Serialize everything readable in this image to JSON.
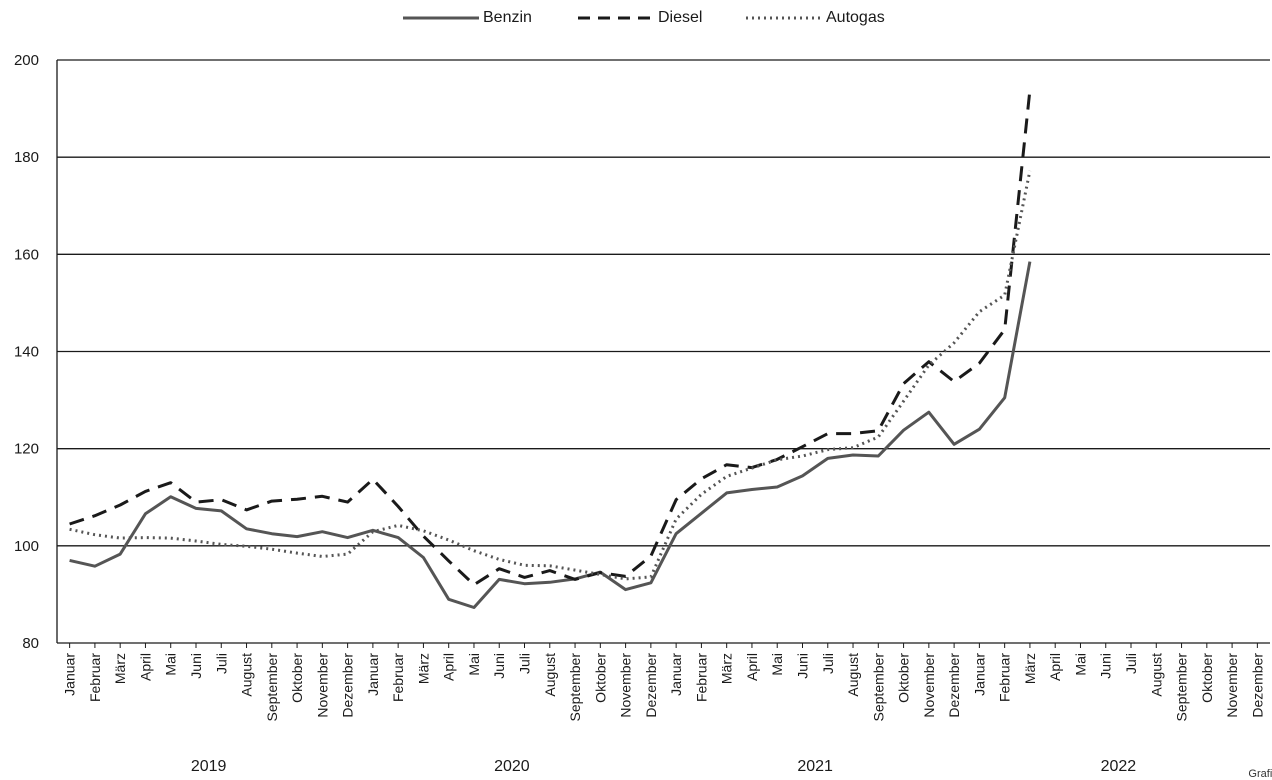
{
  "chart_data": {
    "type": "line",
    "title": "",
    "xlabel": "",
    "ylabel": "",
    "ylim": [
      80,
      200
    ],
    "yticks": [
      80,
      100,
      120,
      140,
      160,
      180,
      200
    ],
    "grid": "horizontal",
    "legend_position": "top-center",
    "months": [
      "Januar",
      "Februar",
      "März",
      "April",
      "Mai",
      "Juni",
      "Juli",
      "August",
      "September",
      "Oktober",
      "November",
      "Dezember"
    ],
    "years": [
      "2019",
      "2020",
      "2021",
      "2022"
    ],
    "series": [
      {
        "name": "Benzin",
        "style": "solid",
        "color": "#555555",
        "values": [
          97,
          95.8,
          98.3,
          106.6,
          110.1,
          107.7,
          107.2,
          103.5,
          102.5,
          101.9,
          102.9,
          101.7,
          103.2,
          101.7,
          97.6,
          89,
          87.3,
          93.1,
          92.2,
          92.5,
          93.2,
          94.6,
          91,
          92.4,
          102.5,
          106.7,
          110.9,
          111.6,
          112.1,
          114.4,
          118,
          118.7,
          118.5,
          123.8,
          127.5,
          120.9,
          124,
          130.5,
          158.5
        ]
      },
      {
        "name": "Diesel",
        "style": "dashed",
        "color": "#1a1a1a",
        "values": [
          104.5,
          106.2,
          108.4,
          111.2,
          113,
          109,
          109.5,
          107.4,
          109.2,
          109.6,
          110.2,
          109,
          113.7,
          108.1,
          102,
          96.9,
          92,
          95.3,
          93.5,
          94.9,
          93.1,
          94.5,
          93.7,
          97.9,
          109.5,
          113.8,
          116.7,
          116.1,
          117.8,
          120.4,
          123.1,
          123.1,
          123.7,
          133.4,
          137.9,
          133.8,
          137.6,
          144.5,
          193.8
        ]
      },
      {
        "name": "Autogas",
        "style": "dotted",
        "color": "#555555",
        "values": [
          103.4,
          102.3,
          101.6,
          101.7,
          101.6,
          101,
          100.3,
          99.9,
          99.3,
          98.5,
          97.8,
          98.3,
          102.9,
          104.2,
          103.1,
          101.2,
          99,
          97.2,
          96,
          95.9,
          95,
          94.1,
          93.2,
          93.6,
          105.5,
          110.6,
          114.3,
          116,
          117.7,
          118.5,
          119.8,
          120.2,
          122.4,
          129.8,
          137.2,
          141.8,
          148.2,
          151.6,
          177.2
        ]
      }
    ]
  },
  "credit": "Grafik: L"
}
